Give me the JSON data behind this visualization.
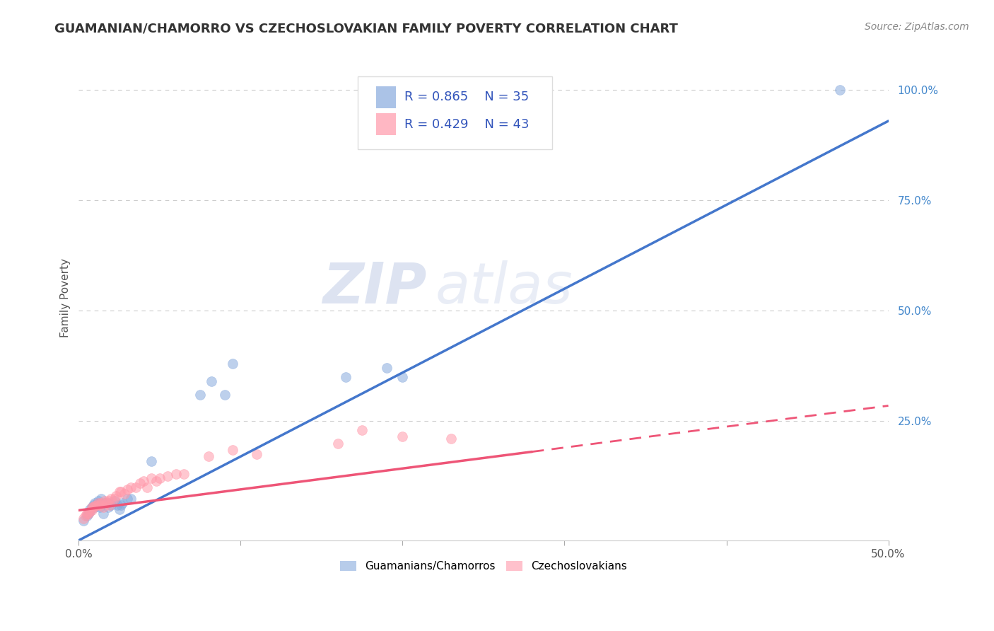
{
  "title": "GUAMANIAN/CHAMORRO VS CZECHOSLOVAKIAN FAMILY POVERTY CORRELATION CHART",
  "source": "Source: ZipAtlas.com",
  "ylabel": "Family Poverty",
  "xlim": [
    0.0,
    0.5
  ],
  "ylim": [
    -0.02,
    1.08
  ],
  "ytick_labels_right": [
    "100.0%",
    "75.0%",
    "50.0%",
    "25.0%"
  ],
  "ytick_positions_right": [
    1.0,
    0.75,
    0.5,
    0.25
  ],
  "grid_color": "#cccccc",
  "background_color": "#ffffff",
  "blue_color": "#88aadd",
  "pink_color": "#ff99aa",
  "blue_line_color": "#4477cc",
  "pink_line_color": "#ee5577",
  "legend_r_blue": "R = 0.865",
  "legend_n_blue": "N = 35",
  "legend_r_pink": "R = 0.429",
  "legend_n_pink": "N = 43",
  "legend_label_blue": "Guamanians/Chamorros",
  "legend_label_pink": "Czechoslovakians",
  "watermark_zip": "ZIP",
  "watermark_atlas": "atlas",
  "blue_x": [
    0.003,
    0.005,
    0.006,
    0.007,
    0.007,
    0.008,
    0.009,
    0.01,
    0.01,
    0.011,
    0.012,
    0.012,
    0.013,
    0.014,
    0.015,
    0.016,
    0.018,
    0.018,
    0.02,
    0.022,
    0.024,
    0.025,
    0.026,
    0.027,
    0.03,
    0.032,
    0.045,
    0.075,
    0.082,
    0.09,
    0.095,
    0.165,
    0.19,
    0.2,
    0.47
  ],
  "blue_y": [
    0.025,
    0.035,
    0.04,
    0.045,
    0.05,
    0.055,
    0.06,
    0.055,
    0.065,
    0.06,
    0.065,
    0.07,
    0.055,
    0.075,
    0.04,
    0.065,
    0.065,
    0.055,
    0.06,
    0.07,
    0.06,
    0.05,
    0.06,
    0.065,
    0.075,
    0.075,
    0.16,
    0.31,
    0.34,
    0.31,
    0.38,
    0.35,
    0.37,
    0.35,
    1.0
  ],
  "pink_x": [
    0.003,
    0.004,
    0.005,
    0.006,
    0.007,
    0.008,
    0.008,
    0.009,
    0.01,
    0.011,
    0.012,
    0.013,
    0.014,
    0.015,
    0.016,
    0.017,
    0.018,
    0.019,
    0.02,
    0.022,
    0.023,
    0.025,
    0.026,
    0.028,
    0.03,
    0.032,
    0.035,
    0.038,
    0.04,
    0.042,
    0.045,
    0.048,
    0.05,
    0.055,
    0.06,
    0.065,
    0.08,
    0.095,
    0.11,
    0.16,
    0.175,
    0.2,
    0.23
  ],
  "pink_y": [
    0.03,
    0.035,
    0.04,
    0.04,
    0.045,
    0.048,
    0.055,
    0.055,
    0.058,
    0.06,
    0.065,
    0.06,
    0.065,
    0.055,
    0.07,
    0.065,
    0.07,
    0.06,
    0.075,
    0.075,
    0.08,
    0.09,
    0.09,
    0.085,
    0.095,
    0.1,
    0.1,
    0.11,
    0.115,
    0.1,
    0.12,
    0.115,
    0.12,
    0.125,
    0.13,
    0.13,
    0.17,
    0.185,
    0.175,
    0.2,
    0.23,
    0.215,
    0.21
  ],
  "blue_line_x0": 0.0,
  "blue_line_y0": -0.02,
  "blue_line_x1": 0.5,
  "blue_line_y1": 0.93,
  "pink_line_x0": 0.0,
  "pink_line_y0": 0.048,
  "pink_line_x1": 0.5,
  "pink_line_y1": 0.285,
  "title_fontsize": 13,
  "axis_label_fontsize": 11,
  "tick_fontsize": 11,
  "legend_fontsize": 13,
  "source_fontsize": 10
}
